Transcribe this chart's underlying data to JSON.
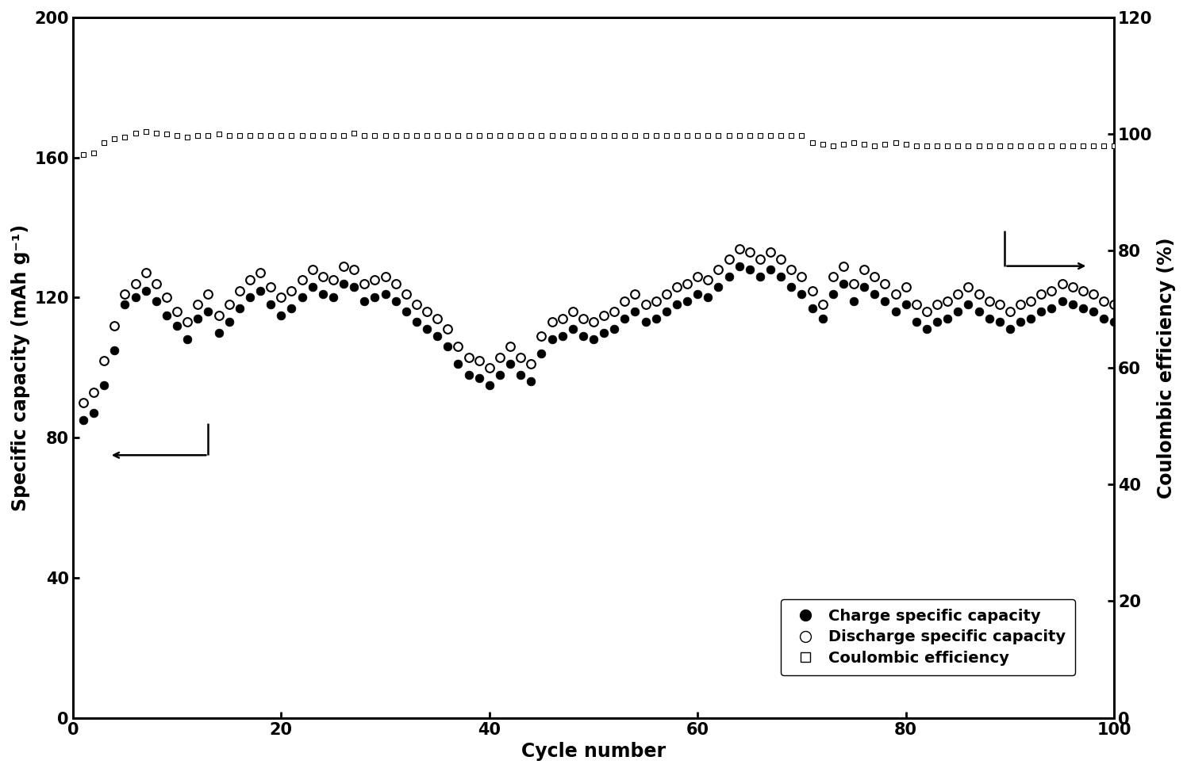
{
  "charge_capacity": [
    85,
    87,
    95,
    105,
    118,
    120,
    122,
    119,
    115,
    112,
    108,
    114,
    116,
    110,
    113,
    117,
    120,
    122,
    118,
    115,
    117,
    120,
    123,
    121,
    120,
    124,
    123,
    119,
    120,
    121,
    119,
    116,
    113,
    111,
    109,
    106,
    101,
    98,
    97,
    95,
    98,
    101,
    98,
    96,
    104,
    108,
    109,
    111,
    109,
    108,
    110,
    111,
    114,
    116,
    113,
    114,
    116,
    118,
    119,
    121,
    120,
    123,
    126,
    129,
    128,
    126,
    128,
    126,
    123,
    121,
    117,
    114,
    121,
    124,
    119,
    123,
    121,
    119,
    116,
    118,
    113,
    111,
    113,
    114,
    116,
    118,
    116,
    114,
    113,
    111,
    113,
    114,
    116,
    117,
    119,
    118,
    117,
    116,
    114,
    113
  ],
  "discharge_capacity": [
    90,
    93,
    102,
    112,
    121,
    124,
    127,
    124,
    120,
    116,
    113,
    118,
    121,
    115,
    118,
    122,
    125,
    127,
    123,
    120,
    122,
    125,
    128,
    126,
    125,
    129,
    128,
    124,
    125,
    126,
    124,
    121,
    118,
    116,
    114,
    111,
    106,
    103,
    102,
    100,
    103,
    106,
    103,
    101,
    109,
    113,
    114,
    116,
    114,
    113,
    115,
    116,
    119,
    121,
    118,
    119,
    121,
    123,
    124,
    126,
    125,
    128,
    131,
    134,
    133,
    131,
    133,
    131,
    128,
    126,
    122,
    118,
    126,
    129,
    124,
    128,
    126,
    124,
    121,
    123,
    118,
    116,
    118,
    119,
    121,
    123,
    121,
    119,
    118,
    116,
    118,
    119,
    121,
    122,
    124,
    123,
    122,
    121,
    119,
    118
  ],
  "coulombic_efficiency": [
    96.5,
    96.8,
    98.5,
    99.2,
    99.5,
    100.2,
    100.5,
    100.2,
    100.0,
    99.8,
    99.5,
    99.8,
    99.7,
    100.0,
    99.8,
    99.8,
    99.8,
    99.8,
    99.8,
    99.8,
    99.8,
    99.8,
    99.8,
    99.8,
    99.8,
    99.8,
    100.2,
    99.8,
    99.8,
    99.8,
    99.8,
    99.8,
    99.8,
    99.8,
    99.8,
    99.8,
    99.8,
    99.8,
    99.8,
    99.8,
    99.8,
    99.8,
    99.8,
    99.8,
    99.8,
    99.8,
    99.8,
    99.8,
    99.8,
    99.8,
    99.8,
    99.8,
    99.8,
    99.8,
    99.8,
    99.8,
    99.8,
    99.8,
    99.8,
    99.8,
    99.8,
    99.8,
    99.8,
    99.8,
    99.8,
    99.8,
    99.8,
    99.8,
    99.8,
    99.8,
    98.5,
    98.2,
    98.0,
    98.2,
    98.5,
    98.2,
    98.0,
    98.2,
    98.5,
    98.2,
    98.0,
    98.0,
    98.0,
    98.0,
    98.0,
    98.0,
    98.0,
    98.0,
    98.0,
    98.0,
    98.0,
    98.0,
    98.0,
    98.0,
    98.0,
    98.0,
    98.0,
    98.0,
    98.0,
    98.0
  ],
  "cycle_numbers": [
    1,
    2,
    3,
    4,
    5,
    6,
    7,
    8,
    9,
    10,
    11,
    12,
    13,
    14,
    15,
    16,
    17,
    18,
    19,
    20,
    21,
    22,
    23,
    24,
    25,
    26,
    27,
    28,
    29,
    30,
    31,
    32,
    33,
    34,
    35,
    36,
    37,
    38,
    39,
    40,
    41,
    42,
    43,
    44,
    45,
    46,
    47,
    48,
    49,
    50,
    51,
    52,
    53,
    54,
    55,
    56,
    57,
    58,
    59,
    60,
    61,
    62,
    63,
    64,
    65,
    66,
    67,
    68,
    69,
    70,
    71,
    72,
    73,
    74,
    75,
    76,
    77,
    78,
    79,
    80,
    81,
    82,
    83,
    84,
    85,
    86,
    87,
    88,
    89,
    90,
    91,
    92,
    93,
    94,
    95,
    96,
    97,
    98,
    99,
    100
  ],
  "xlabel": "Cycle number",
  "ylabel_left": "Specific capacity (mAh g⁻¹)",
  "ylabel_right": "Coulombic efficiency (%)",
  "xlim": [
    0,
    100
  ],
  "ylim_left": [
    0,
    200
  ],
  "ylim_right": [
    0,
    120
  ],
  "xticks": [
    0,
    20,
    40,
    60,
    80,
    100
  ],
  "yticks_left": [
    0,
    40,
    80,
    120,
    160,
    200
  ],
  "yticks_right": [
    0,
    20,
    40,
    60,
    80,
    100,
    120
  ],
  "legend_labels": [
    "Charge specific capacity",
    "Discharge specific capacity",
    "Coulombic efficiency"
  ],
  "charge_color": "#000000",
  "discharge_color": "#000000",
  "coulombic_color": "#000000",
  "bg_color": "#ffffff",
  "fontsize_label": 17,
  "fontsize_tick": 15,
  "fontsize_legend": 14,
  "marker_size_cap": 60,
  "marker_size_ce": 25,
  "spine_lw": 2.0
}
